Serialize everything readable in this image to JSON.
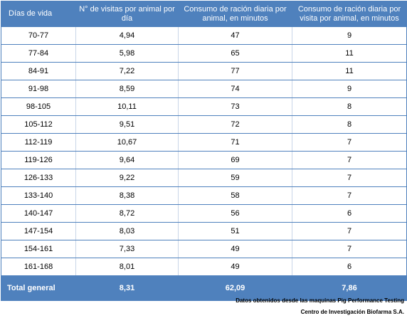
{
  "table": {
    "headers": [
      "Días de vida",
      "N° de visitas por animal por día",
      "Consumo de ración diaria por animal, en minutos",
      "Consumo de ración diaria por visita por animal, en minutos"
    ],
    "rows": [
      [
        "70-77",
        "4,94",
        "47",
        "9"
      ],
      [
        "77-84",
        "5,98",
        "65",
        "11"
      ],
      [
        "84-91",
        "7,22",
        "77",
        "11"
      ],
      [
        "91-98",
        "8,59",
        "74",
        "9"
      ],
      [
        "98-105",
        "10,11",
        "73",
        "8"
      ],
      [
        "105-112",
        "9,51",
        "72",
        "8"
      ],
      [
        "112-119",
        "10,67",
        "71",
        "7"
      ],
      [
        "119-126",
        "9,64",
        "69",
        "7"
      ],
      [
        "126-133",
        "9,22",
        "59",
        "7"
      ],
      [
        "133-140",
        "8,38",
        "58",
        "7"
      ],
      [
        "140-147",
        "8,72",
        "56",
        "6"
      ],
      [
        "147-154",
        "8,03",
        "51",
        "7"
      ],
      [
        "154-161",
        "7,33",
        "49",
        "7"
      ],
      [
        "161-168",
        "8,01",
        "49",
        "6"
      ]
    ],
    "total": [
      "Total general",
      "8,31",
      "62,09",
      "7,86"
    ]
  },
  "source": {
    "line1": "Datos obtenidos desde las maquinas Pig Performance Testing",
    "line2": "Centro de Investigación Biofarma S.A."
  },
  "colors": {
    "header_bg": "#4f81bd",
    "header_text": "#ffffff",
    "grid_line": "#4f81bd"
  }
}
